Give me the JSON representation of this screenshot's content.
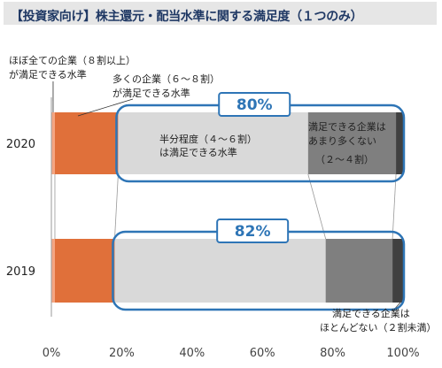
{
  "title": "【投資家向け】株主還元・配当水準に関する満足度（１つのみ）",
  "colors": {
    "nearly_all": "#f4a582",
    "many": "#e0703a",
    "half": "#d9d9d9",
    "not_many": "#7f7f7f",
    "almost_none": "#404040",
    "highlight": "#2e75b6",
    "highlight_text": "#2e75b6"
  },
  "chart_data": {
    "type": "bar",
    "orientation": "horizontal",
    "stacked": true,
    "categories": [
      "2020",
      "2019"
    ],
    "series": [
      {
        "name": "ほぼ全ての企業（８割以上）が満足できる水準",
        "color": "#f4a582",
        "values": [
          1,
          1
        ]
      },
      {
        "name": "多くの企業（６～８割）が満足できる水準",
        "color": "#e0703a",
        "values": [
          18,
          17
        ]
      },
      {
        "name": "半分程度（４～６割）は満足できる水準",
        "color": "#d9d9d9",
        "values": [
          54,
          60
        ]
      },
      {
        "name": "満足できる企業はあまり多くない（２～４割）",
        "color": "#7f7f7f",
        "values": [
          25,
          19
        ]
      },
      {
        "name": "満足できる企業はほとんどない（２割未満）",
        "color": "#404040",
        "values": [
          2,
          3
        ]
      }
    ],
    "highlight_labels": [
      "80%",
      "82%"
    ],
    "xlim": [
      0,
      100
    ],
    "xticks": [
      "0%",
      "20%",
      "40%",
      "60%",
      "80%",
      "100%"
    ]
  },
  "annotations": {
    "nearly_all_line1": "ほぼ全ての企業（８割以上）",
    "nearly_all_line2": "が満足できる水準",
    "many_line1": "多くの企業（６～８割）",
    "many_line2": "が満足できる水準",
    "half_line1": "半分程度（４～６割）",
    "half_line2": "は満足できる水準",
    "notmany_line1": "満足できる企業は",
    "notmany_line2": "あまり多くない",
    "notmany_line3": "（２～４割）",
    "none_line1": "満足できる企業は",
    "none_line2": "ほとんどない（２割未満）"
  }
}
